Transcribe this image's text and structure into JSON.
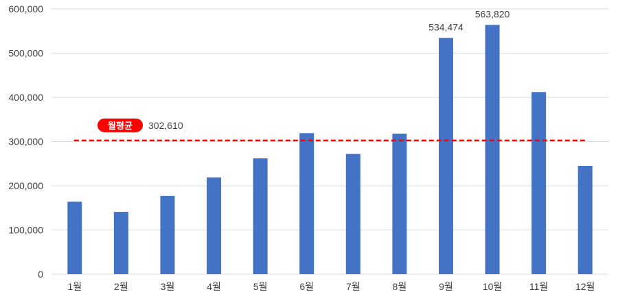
{
  "chart_data": {
    "type": "bar",
    "title": "",
    "xlabel": "",
    "ylabel": "",
    "categories": [
      "1월",
      "2월",
      "3월",
      "4월",
      "5월",
      "6월",
      "7월",
      "8월",
      "9월",
      "10월",
      "11월",
      "12월"
    ],
    "values": [
      164000,
      141000,
      177000,
      219000,
      262000,
      319000,
      272000,
      318000,
      534474,
      563820,
      412000,
      245000
    ],
    "ylim": [
      0,
      600000
    ],
    "y_ticks": [
      0,
      100000,
      200000,
      300000,
      400000,
      500000,
      600000
    ],
    "y_tick_labels": [
      "0",
      "100,000",
      "200,000",
      "300,000",
      "400,000",
      "500,000",
      "600,000"
    ],
    "data_labels": [
      {
        "index": 8,
        "text": "534,474"
      },
      {
        "index": 9,
        "text": "563,820"
      }
    ],
    "reference_line": {
      "value": 302610,
      "label": "월평균",
      "value_text": "302,610",
      "color": "#ff0000",
      "style": "dashed"
    },
    "grid": true,
    "legend": "none",
    "colors": {
      "bar": "#4472c4",
      "grid": "#d9d9d9",
      "axis_text": "#404040",
      "reference": "#ff0000"
    }
  }
}
